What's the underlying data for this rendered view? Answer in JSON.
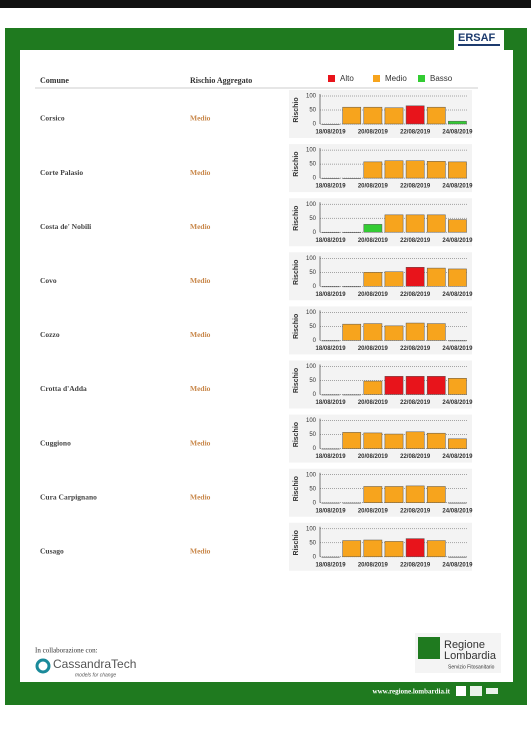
{
  "header": {
    "logo": "ERSAF",
    "columns": [
      "Comune",
      "Rischio Aggregato"
    ]
  },
  "legend": [
    {
      "label": "Alto",
      "color": "#e8141b"
    },
    {
      "label": "Medio",
      "color": "#f7a41d"
    },
    {
      "label": "Basso",
      "color": "#33cc33"
    }
  ],
  "chart": {
    "y_label": "Rischio",
    "ylim": [
      0,
      100
    ],
    "yticks": [
      0,
      50,
      100
    ],
    "categories": [
      "18/08/2019",
      null,
      "20/08/2019",
      null,
      "22/08/2019",
      null,
      "24/08/2019"
    ]
  },
  "rows": [
    {
      "comune": "Corsico",
      "rischio": "Medio",
      "values": [
        0,
        60,
        60,
        58,
        65,
        60,
        10
      ],
      "colors": [
        null,
        "#f7a41d",
        "#f7a41d",
        "#f7a41d",
        "#e8141b",
        "#f7a41d",
        "#33cc33"
      ]
    },
    {
      "comune": "Corte Palasio",
      "rischio": "Medio",
      "values": [
        0,
        0,
        58,
        62,
        62,
        60,
        58
      ],
      "colors": [
        null,
        null,
        "#f7a41d",
        "#f7a41d",
        "#f7a41d",
        "#f7a41d",
        "#f7a41d"
      ]
    },
    {
      "comune": "Costa de' Nobili",
      "rischio": "Medio",
      "values": [
        0,
        0,
        28,
        62,
        62,
        62,
        45
      ],
      "colors": [
        null,
        null,
        "#33cc33",
        "#f7a41d",
        "#f7a41d",
        "#f7a41d",
        "#f7a41d"
      ]
    },
    {
      "comune": "Covo",
      "rischio": "Medio",
      "values": [
        0,
        0,
        50,
        52,
        68,
        65,
        62
      ],
      "colors": [
        null,
        null,
        "#f7a41d",
        "#f7a41d",
        "#e8141b",
        "#f7a41d",
        "#f7a41d"
      ]
    },
    {
      "comune": "Cozzo",
      "rischio": "Medio",
      "values": [
        0,
        58,
        60,
        52,
        62,
        60,
        0
      ],
      "colors": [
        null,
        "#f7a41d",
        "#f7a41d",
        "#f7a41d",
        "#f7a41d",
        "#f7a41d",
        null
      ]
    },
    {
      "comune": "Crotta d'Adda",
      "rischio": "Medio",
      "values": [
        0,
        0,
        48,
        65,
        65,
        65,
        58
      ],
      "colors": [
        null,
        null,
        "#f7a41d",
        "#e8141b",
        "#e8141b",
        "#e8141b",
        "#f7a41d"
      ]
    },
    {
      "comune": "Cuggiono",
      "rischio": "Medio",
      "values": [
        0,
        58,
        56,
        52,
        60,
        55,
        35
      ],
      "colors": [
        null,
        "#f7a41d",
        "#f7a41d",
        "#f7a41d",
        "#f7a41d",
        "#f7a41d",
        "#f7a41d"
      ]
    },
    {
      "comune": "Cura Carpignano",
      "rischio": "Medio",
      "values": [
        0,
        0,
        58,
        58,
        60,
        58,
        0
      ],
      "colors": [
        null,
        null,
        "#f7a41d",
        "#f7a41d",
        "#f7a41d",
        "#f7a41d",
        null
      ]
    },
    {
      "comune": "Cusago",
      "rischio": "Medio",
      "values": [
        0,
        58,
        60,
        55,
        65,
        58,
        0
      ],
      "colors": [
        null,
        "#f7a41d",
        "#f7a41d",
        "#f7a41d",
        "#e8141b",
        "#f7a41d",
        null
      ]
    }
  ],
  "footer": {
    "collab": "In collaborazione con:",
    "partner": "CassandraTech",
    "partner_tagline": "models for change",
    "region_1": "Regione",
    "region_2": "Lombardia",
    "service": "Servizio Fitosanitario",
    "url": "www.regione.lombardia.it"
  }
}
